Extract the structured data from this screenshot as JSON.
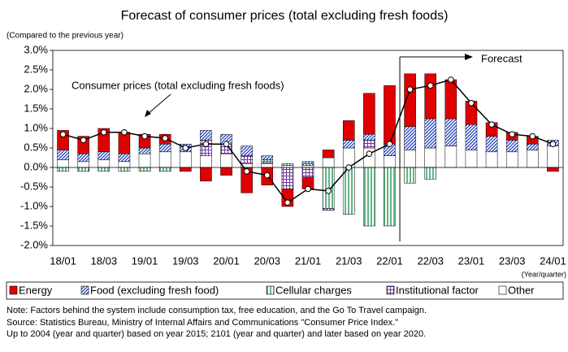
{
  "chart_data": {
    "type": "stacked_bar_line",
    "title": "Forecast of consumer prices (total excluding fresh foods)",
    "y_axis_label": "(Compared to the previous year)",
    "x_axis_label": "(Year/quarter)",
    "categories": [
      "18/01",
      null,
      "18/03",
      null,
      "19/01",
      null,
      "19/03",
      null,
      "20/01",
      null,
      "20/03",
      null,
      "21/01",
      null,
      "21/03",
      null,
      "22/01",
      null,
      "22/03",
      null,
      "23/01",
      null,
      "23/03",
      null,
      "24/01"
    ],
    "series": [
      {
        "name": "Energy",
        "color": "#e00000",
        "pattern": "solid",
        "values": [
          0.5,
          0.45,
          0.6,
          0.55,
          0.35,
          0.25,
          -0.1,
          -0.35,
          -0.2,
          -0.65,
          -0.45,
          -0.45,
          -0.3,
          0.2,
          0.5,
          1.05,
          1.5,
          1.35,
          1.15,
          1.0,
          0.6,
          0.35,
          0.2,
          0.2,
          -0.1
        ]
      },
      {
        "name": "Food (excluding fresh food)",
        "color": "#1f3fbf",
        "pattern": "diagonal",
        "values": [
          0.25,
          0.2,
          0.2,
          0.2,
          0.15,
          0.2,
          0.2,
          0.25,
          0.25,
          0.25,
          0.1,
          0.0,
          0.05,
          -0.05,
          0.2,
          0.15,
          0.3,
          0.6,
          0.75,
          0.7,
          0.65,
          0.4,
          0.3,
          0.15,
          0.15
        ]
      },
      {
        "name": "Cellular charges",
        "color": "#2e9e5e",
        "pattern": "vertical",
        "values": [
          -0.1,
          -0.1,
          -0.1,
          -0.1,
          -0.1,
          -0.1,
          0.0,
          0.0,
          0.0,
          0.0,
          0.05,
          0.05,
          0.05,
          -1.05,
          -1.2,
          -1.5,
          -1.5,
          -0.4,
          -0.3,
          0.0,
          0.0,
          0.0,
          0.0,
          0.0,
          0.0
        ]
      },
      {
        "name": "Institutional factor",
        "color": "#7030a0",
        "pattern": "grid",
        "values": [
          0.0,
          0.0,
          0.0,
          0.0,
          0.0,
          0.0,
          0.0,
          0.4,
          0.25,
          0.2,
          0.05,
          -0.55,
          -0.25,
          0.0,
          0.0,
          0.2,
          0.0,
          0.0,
          0.0,
          0.0,
          0.0,
          0.0,
          0.0,
          0.0,
          0.0
        ]
      },
      {
        "name": "Other",
        "color": "#ffffff",
        "pattern": "none",
        "values": [
          0.2,
          0.15,
          0.2,
          0.15,
          0.35,
          0.4,
          0.4,
          0.3,
          0.35,
          0.1,
          0.1,
          0.05,
          0.05,
          0.25,
          0.5,
          0.5,
          0.3,
          0.45,
          0.5,
          0.55,
          0.45,
          0.4,
          0.4,
          0.45,
          0.55
        ]
      }
    ],
    "line": {
      "name": "Consumer prices (total excluding fresh foods)",
      "color": "#000000",
      "values": [
        0.85,
        0.7,
        0.9,
        0.9,
        0.8,
        0.75,
        0.5,
        0.6,
        0.6,
        -0.1,
        -0.2,
        -0.9,
        -0.55,
        -0.6,
        0.0,
        0.35,
        0.6,
        2.0,
        2.1,
        2.25,
        1.65,
        1.1,
        0.85,
        0.8,
        0.6
      ]
    },
    "annotations": [
      "Forecast"
    ],
    "ylim": [
      -2,
      3
    ],
    "yticks": [
      {
        "value": -2,
        "label": "-2.0%"
      },
      {
        "value": -1.5,
        "label": "-1.5%"
      },
      {
        "value": -1,
        "label": "-1.0%"
      },
      {
        "value": -0.5,
        "label": "-0.5%"
      },
      {
        "value": 0,
        "label": "0.0%"
      },
      {
        "value": 0.5,
        "label": "0.5%"
      },
      {
        "value": 1,
        "label": "1.0%"
      },
      {
        "value": 1.5,
        "label": "1.5%"
      },
      {
        "value": 2,
        "label": "2.0%"
      },
      {
        "value": 2.5,
        "label": "2.5%"
      },
      {
        "value": 3,
        "label": "3.0%"
      }
    ],
    "grid": false,
    "legend": "bottom"
  },
  "notes": [
    "Note: Factors behind the system include consumption tax, free education, and the Go To Travel campaign.",
    "Source: Statistics Bureau, Ministry of Internal Affairs and Communications \"Consumer Price Index.\"",
    "Up to 2004 (year and quarter) based on year 2015; 2101 (year and quarter) and later based on year 2020."
  ]
}
